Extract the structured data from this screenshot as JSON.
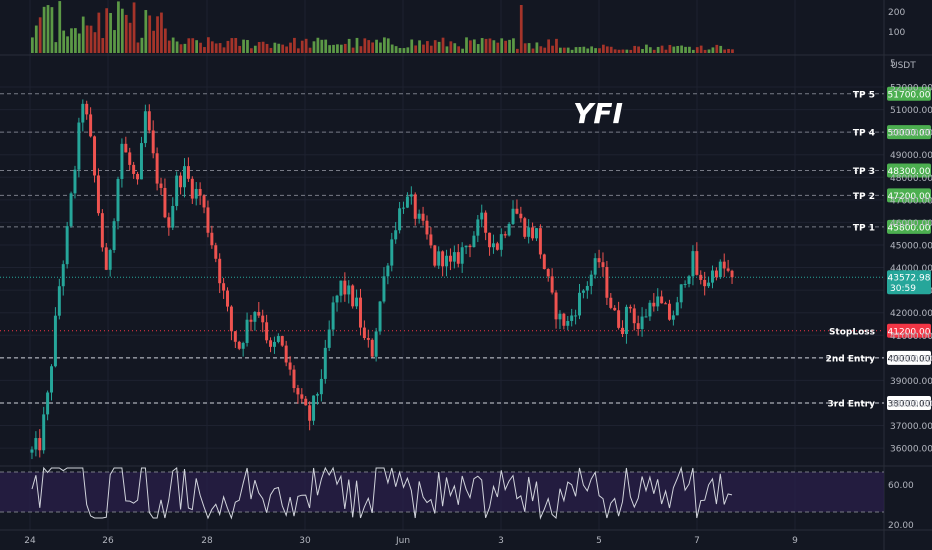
{
  "chart_data": {
    "type": "candlestick",
    "title": "YFI",
    "quote_currency": "USDT",
    "x_tick_labels": [
      "24",
      "26",
      "28",
      "30",
      "Jun",
      "3",
      "5",
      "7",
      "9"
    ],
    "price_axis": {
      "range": [
        35200,
        52900
      ],
      "tick_labels": [
        "52000.00",
        "51000.00",
        "50000.00",
        "49000.00",
        "48000.00",
        "47000.00",
        "46000.00",
        "45000.00",
        "44000.00",
        "43000.00",
        "42000.00",
        "41000.00",
        "40000.00",
        "39000.00",
        "38000.00",
        "37000.00",
        "36000.00"
      ],
      "tick_values": [
        52000,
        51000,
        50000,
        49000,
        48000,
        47000,
        46000,
        45000,
        44000,
        43000,
        42000,
        41000,
        40000,
        39000,
        38000,
        37000,
        36000
      ],
      "top_partial_label": "5"
    },
    "current_price": {
      "value": 43572.98,
      "label": "43572.98",
      "countdown": "30:59"
    },
    "levels": [
      {
        "name": "TP 5",
        "value": 51700,
        "label": "51700.00",
        "color": "#4caf50",
        "line": "dashed"
      },
      {
        "name": "TP 4",
        "value": 50000,
        "label": "50000.00",
        "color": "#4caf50",
        "line": "dashed"
      },
      {
        "name": "TP 3",
        "value": 48300,
        "label": "48300.00",
        "color": "#4caf50",
        "line": "dashed"
      },
      {
        "name": "TP 2",
        "value": 47200,
        "label": "47200.00",
        "color": "#4caf50",
        "line": "dashed"
      },
      {
        "name": "TP 1",
        "value": 45800,
        "label": "45800.00",
        "color": "#4caf50",
        "line": "dashed"
      },
      {
        "name": "StopLoss",
        "value": 41200,
        "label": "41200.00",
        "color": "#f23645",
        "line": "dotted"
      },
      {
        "name": "2nd Entry",
        "value": 40000,
        "label": "40000.00",
        "color": "#ffffff",
        "line": "dashed"
      },
      {
        "name": "3rd Entry",
        "value": 38000,
        "label": "38000.00",
        "color": "#ffffff",
        "line": "dashed"
      }
    ],
    "price_path": [
      [
        0,
        35800
      ],
      [
        2,
        36200
      ],
      [
        4,
        38200
      ],
      [
        7,
        43200
      ],
      [
        9,
        45500
      ],
      [
        11,
        48500
      ],
      [
        13,
        51500
      ],
      [
        15,
        49500
      ],
      [
        17,
        46500
      ],
      [
        19,
        43500
      ],
      [
        21,
        46500
      ],
      [
        23,
        49500
      ],
      [
        25,
        48500
      ],
      [
        27,
        47500
      ],
      [
        29,
        50800
      ],
      [
        31,
        48800
      ],
      [
        33,
        47200
      ],
      [
        35,
        46000
      ],
      [
        37,
        47800
      ],
      [
        39,
        48200
      ],
      [
        41,
        47500
      ],
      [
        43,
        47200
      ],
      [
        45,
        45800
      ],
      [
        47,
        44500
      ],
      [
        49,
        42800
      ],
      [
        51,
        41200
      ],
      [
        53,
        40500
      ],
      [
        55,
        41500
      ],
      [
        57,
        42200
      ],
      [
        59,
        41800
      ],
      [
        61,
        40200
      ],
      [
        63,
        40800
      ],
      [
        65,
        39800
      ],
      [
        67,
        38800
      ],
      [
        69,
        37800
      ],
      [
        71,
        37300
      ],
      [
        73,
        38500
      ],
      [
        75,
        40000
      ],
      [
        77,
        42200
      ],
      [
        79,
        43200
      ],
      [
        81,
        42800
      ],
      [
        83,
        42300
      ],
      [
        85,
        40700
      ],
      [
        87,
        40300
      ],
      [
        89,
        42500
      ],
      [
        91,
        44500
      ],
      [
        93,
        46000
      ],
      [
        95,
        47000
      ],
      [
        97,
        46800
      ],
      [
        99,
        46000
      ],
      [
        101,
        45300
      ],
      [
        103,
        44300
      ],
      [
        105,
        44500
      ],
      [
        107,
        44000
      ],
      [
        109,
        44500
      ],
      [
        111,
        45000
      ],
      [
        113,
        45500
      ],
      [
        115,
        46000
      ],
      [
        117,
        45300
      ],
      [
        119,
        45000
      ],
      [
        121,
        45800
      ],
      [
        123,
        46800
      ],
      [
        125,
        46000
      ],
      [
        127,
        45600
      ],
      [
        129,
        45500
      ],
      [
        131,
        44000
      ],
      [
        133,
        42500
      ],
      [
        135,
        41700
      ],
      [
        137,
        41500
      ],
      [
        139,
        42300
      ],
      [
        141,
        43000
      ],
      [
        143,
        43700
      ],
      [
        145,
        44300
      ],
      [
        147,
        43000
      ],
      [
        149,
        41800
      ],
      [
        151,
        41500
      ],
      [
        153,
        42300
      ],
      [
        155,
        41300
      ],
      [
        157,
        42000
      ],
      [
        159,
        42700
      ],
      [
        161,
        42200
      ],
      [
        163,
        41800
      ],
      [
        165,
        42200
      ],
      [
        167,
        43700
      ],
      [
        169,
        44300
      ],
      [
        171,
        43200
      ],
      [
        173,
        43500
      ],
      [
        175,
        44000
      ],
      [
        177,
        43900
      ],
      [
        179,
        43573
      ]
    ],
    "volume_axis": {
      "tick_labels": [
        "200",
        "100"
      ],
      "tick_values": [
        200,
        100
      ]
    },
    "rsi_panel": {
      "tick_labels": [
        "60.00",
        "20.00"
      ],
      "tick_values": [
        60,
        20
      ],
      "band": [
        30,
        70
      ]
    }
  }
}
